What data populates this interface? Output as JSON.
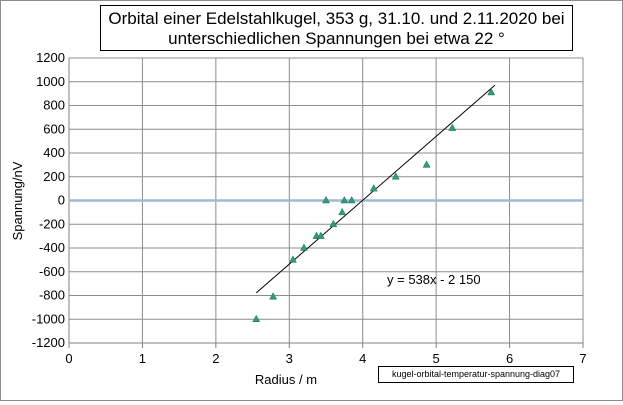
{
  "chart_data": {
    "type": "scatter",
    "title_line1": "Orbital einer Edelstahlkugel, 353 g, 31.10. und 2.11.2020  bei",
    "title_line2": "unterschiedlichen Spannungen bei etwa 22 °",
    "xlabel": "Radius / m",
    "ylabel": "Spannung/nV",
    "xlim": [
      0,
      7
    ],
    "ylim": [
      -1200,
      1200
    ],
    "x_ticks": [
      0,
      1,
      2,
      3,
      4,
      5,
      6,
      7
    ],
    "y_ticks": [
      1200,
      1000,
      800,
      600,
      400,
      200,
      0,
      -200,
      -400,
      -600,
      -800,
      -1000,
      -1200
    ],
    "x_tick_labels": [
      "0",
      "1",
      "2",
      "3",
      "4",
      "5",
      "6",
      "7"
    ],
    "y_tick_labels": [
      "1200",
      "1000",
      "800",
      "600",
      "400",
      "200",
      "0",
      "-200",
      "-400",
      "-600",
      "-800",
      "-1000",
      "-1200"
    ],
    "grid": true,
    "points": [
      {
        "x": 2.55,
        "y": -1000
      },
      {
        "x": 2.78,
        "y": -810
      },
      {
        "x": 3.05,
        "y": -500
      },
      {
        "x": 3.2,
        "y": -400
      },
      {
        "x": 3.37,
        "y": -300
      },
      {
        "x": 3.43,
        "y": -300
      },
      {
        "x": 3.5,
        "y": 0
      },
      {
        "x": 3.6,
        "y": -200
      },
      {
        "x": 3.72,
        "y": -100
      },
      {
        "x": 3.75,
        "y": 0
      },
      {
        "x": 3.85,
        "y": 0
      },
      {
        "x": 4.15,
        "y": 100
      },
      {
        "x": 4.45,
        "y": 200
      },
      {
        "x": 4.87,
        "y": 300
      },
      {
        "x": 5.22,
        "y": 610
      },
      {
        "x": 5.75,
        "y": 910
      }
    ],
    "trendline": {
      "slope": 538,
      "intercept": -2150,
      "x_range": [
        2.55,
        5.8
      ]
    },
    "equation_label": "y = 538x - 2 150",
    "reference_line": {
      "y": 0
    },
    "caption": "kugel-orbital-temperatur-spannung-diag07",
    "colors": {
      "marker": "#2e9e7a",
      "trendline": "#000000",
      "reference_line": "#9fb9d6",
      "grid": "#8c8c8c",
      "axis": "#808080"
    }
  }
}
